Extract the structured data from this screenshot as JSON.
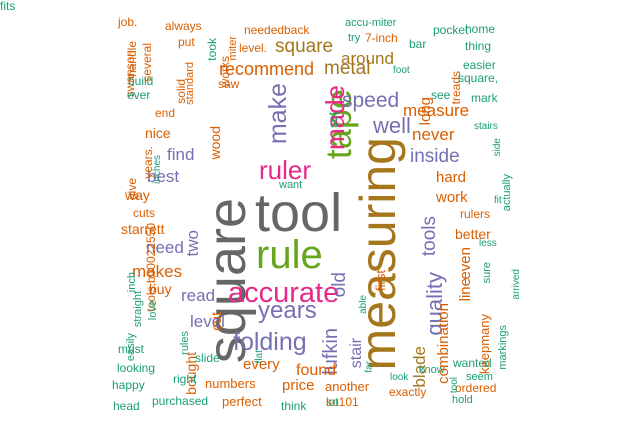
{
  "palette": {
    "green": "#1B9E77",
    "orange": "#D95F02",
    "purple": "#7570B3",
    "magenta": "#E7298A",
    "lime": "#66A61E",
    "gold": "#A6761D",
    "gray": "#666666"
  },
  "words": [
    {
      "text": "tool",
      "color": "gray"
    },
    {
      "text": "square",
      "color": "gray"
    },
    {
      "text": "measuring",
      "color": "gold"
    },
    {
      "text": "rule",
      "color": "lime"
    },
    {
      "text": "accurate",
      "color": "magenta"
    },
    {
      "text": "tape",
      "color": "lime"
    },
    {
      "text": "made",
      "color": "magenta"
    },
    {
      "text": "ruler",
      "color": "magenta"
    },
    {
      "text": "make",
      "color": "purple"
    },
    {
      "text": "folding",
      "color": "purple"
    },
    {
      "text": "years",
      "color": "purple"
    },
    {
      "text": "speed",
      "color": "purple"
    },
    {
      "text": "well",
      "color": "purple"
    },
    {
      "text": "quality",
      "color": "purple"
    },
    {
      "text": "lufkin",
      "color": "purple"
    },
    {
      "text": "old",
      "color": "purple"
    },
    {
      "text": "inside",
      "color": "purple"
    },
    {
      "text": "metal",
      "color": "gold"
    },
    {
      "text": "square",
      "color": "gold"
    },
    {
      "text": "recommend",
      "color": "orange"
    },
    {
      "text": "measure",
      "color": "orange"
    },
    {
      "text": "around",
      "color": "gold"
    },
    {
      "text": "tools",
      "color": "purple"
    },
    {
      "text": "blade",
      "color": "gold"
    },
    {
      "text": "never",
      "color": "orange"
    },
    {
      "text": "read",
      "color": "purple"
    },
    {
      "text": "level",
      "color": "purple"
    },
    {
      "text": "find",
      "color": "purple"
    },
    {
      "text": "best",
      "color": "purple"
    },
    {
      "text": "two",
      "color": "purple"
    },
    {
      "text": "need",
      "color": "purple"
    },
    {
      "text": "makes",
      "color": "orange"
    },
    {
      "text": "hard",
      "color": "orange"
    },
    {
      "text": "work",
      "color": "orange"
    },
    {
      "text": "better",
      "color": "orange"
    },
    {
      "text": "long",
      "color": "orange"
    },
    {
      "text": "stair",
      "color": "purple"
    },
    {
      "text": "found",
      "color": "orange"
    },
    {
      "text": "every",
      "color": "orange"
    },
    {
      "text": "price",
      "color": "orange"
    },
    {
      "text": "combination",
      "color": "orange"
    },
    {
      "text": "even",
      "color": "orange"
    },
    {
      "text": "line",
      "color": "orange"
    },
    {
      "text": "keepmany",
      "color": "orange"
    },
    {
      "text": "first",
      "color": "orange"
    },
    {
      "text": "cut",
      "color": "orange"
    },
    {
      "text": "bought",
      "color": "orange"
    },
    {
      "text": "buy",
      "color": "orange"
    },
    {
      "text": "way",
      "color": "orange"
    },
    {
      "text": "nice",
      "color": "orange"
    },
    {
      "text": "wood",
      "color": "orange"
    },
    {
      "text": "starrett",
      "color": "orange"
    },
    {
      "text": "numbers",
      "color": "orange"
    },
    {
      "text": "another",
      "color": "orange"
    },
    {
      "text": "perfect",
      "color": "orange"
    },
    {
      "text": "so101",
      "color": "orange"
    },
    {
      "text": "exactly",
      "color": "orange"
    },
    {
      "text": "ordered",
      "color": "orange"
    },
    {
      "text": "rulers",
      "color": "orange"
    },
    {
      "text": "cuts",
      "color": "orange"
    },
    {
      "text": "needed",
      "color": "orange"
    },
    {
      "text": "back",
      "color": "orange"
    },
    {
      "text": "level.",
      "color": "orange"
    },
    {
      "text": "saw",
      "color": "orange"
    },
    {
      "text": "end",
      "color": "orange"
    },
    {
      "text": "works",
      "color": "orange"
    },
    {
      "text": "put",
      "color": "orange"
    },
    {
      "text": "always",
      "color": "orange"
    },
    {
      "text": "several",
      "color": "orange"
    },
    {
      "text": "give",
      "color": "orange"
    },
    {
      "text": "years.",
      "color": "orange"
    },
    {
      "text": "tools,b00022550",
      "color": "orange"
    },
    {
      "text": "swanson",
      "color": "orange"
    },
    {
      "text": "handle",
      "color": "orange"
    },
    {
      "text": "job.",
      "color": "orange"
    },
    {
      "text": "build",
      "color": "green"
    },
    {
      "text": "ever",
      "color": "green"
    },
    {
      "text": "solid",
      "color": "orange"
    },
    {
      "text": "took",
      "color": "green"
    },
    {
      "text": "standard",
      "color": "orange"
    },
    {
      "text": "miter",
      "color": "orange"
    },
    {
      "text": "accu-miter",
      "color": "green"
    },
    {
      "text": "try",
      "color": "green"
    },
    {
      "text": "7-inch",
      "color": "orange"
    },
    {
      "text": "pocket",
      "color": "green"
    },
    {
      "text": "bar",
      "color": "green"
    },
    {
      "text": "treads",
      "color": "orange"
    },
    {
      "text": "home",
      "color": "green"
    },
    {
      "text": "thing",
      "color": "green"
    },
    {
      "text": "easier",
      "color": "green"
    },
    {
      "text": "square,",
      "color": "green"
    },
    {
      "text": "foot",
      "color": "green"
    },
    {
      "text": "mark",
      "color": "green"
    },
    {
      "text": "see",
      "color": "green"
    },
    {
      "text": "set",
      "color": "green"
    },
    {
      "text": "stairs",
      "color": "green"
    },
    {
      "text": "side",
      "color": "green"
    },
    {
      "text": "actually",
      "color": "green"
    },
    {
      "text": "fit",
      "color": "green"
    },
    {
      "text": "less",
      "color": "green"
    },
    {
      "text": "arrived",
      "color": "green"
    },
    {
      "text": "sure",
      "color": "green"
    },
    {
      "text": "markings",
      "color": "green"
    },
    {
      "text": "wanted",
      "color": "green"
    },
    {
      "text": "seem",
      "color": "green"
    },
    {
      "text": "hold",
      "color": "green"
    },
    {
      "text": "know",
      "color": "green"
    },
    {
      "text": "look",
      "color": "green"
    },
    {
      "text": "tool",
      "color": "green"
    },
    {
      "text": "far",
      "color": "green"
    },
    {
      "text": "able",
      "color": "green"
    },
    {
      "text": "lot",
      "color": "green"
    },
    {
      "text": "think",
      "color": "green"
    },
    {
      "text": "flat",
      "color": "green"
    },
    {
      "text": "want",
      "color": "green"
    },
    {
      "text": "slide",
      "color": "green"
    },
    {
      "text": "right",
      "color": "green"
    },
    {
      "text": "purchased",
      "color": "green"
    },
    {
      "text": "head",
      "color": "green"
    },
    {
      "text": "happy",
      "color": "green"
    },
    {
      "text": "looking",
      "color": "green"
    },
    {
      "text": "must",
      "color": "green"
    },
    {
      "text": "easily",
      "color": "green"
    },
    {
      "text": "straight",
      "color": "green"
    },
    {
      "text": "love",
      "color": "green"
    },
    {
      "text": "inch",
      "color": "green"
    },
    {
      "text": "rules",
      "color": "green"
    },
    {
      "text": "inches",
      "color": "green"
    },
    {
      "text": "fits",
      "color": "green"
    }
  ]
}
